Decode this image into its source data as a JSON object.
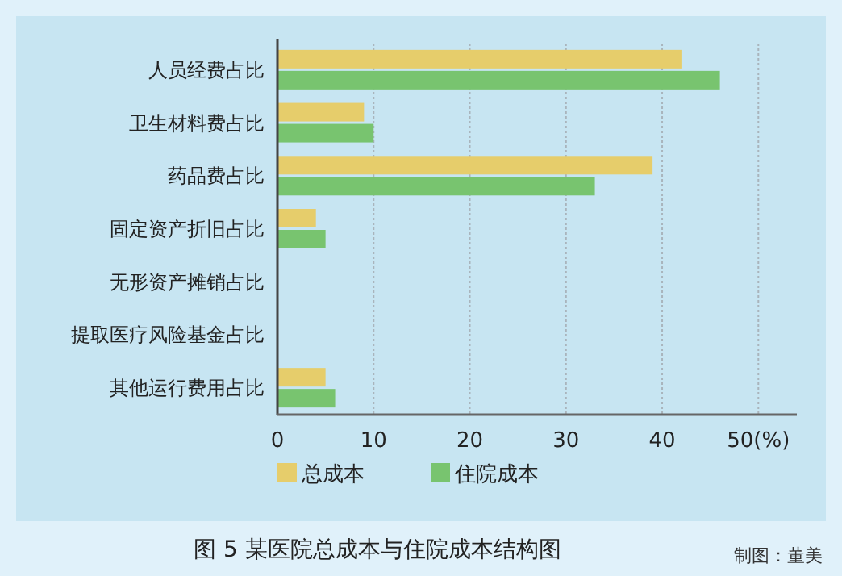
{
  "chart_data": {
    "type": "bar",
    "orientation": "horizontal",
    "title": "图 5  某医院总成本与住院成本结构图",
    "annotations": [
      "制图：董美"
    ],
    "categories": [
      "人员经费占比",
      "卫生材料费占比",
      "药品费占比",
      "固定资产折旧占比",
      "无形资产摊销占比",
      "提取医疗风险基金占比",
      "其他运行费用占比"
    ],
    "series": [
      {
        "name": "总成本",
        "color": "#e6cd6b",
        "values": [
          42,
          9,
          39,
          4,
          0,
          0,
          5
        ]
      },
      {
        "name": "住院成本",
        "color": "#78c46f",
        "values": [
          46,
          10,
          33,
          5,
          0,
          0,
          6
        ]
      }
    ],
    "xlim": [
      0,
      54
    ],
    "xticks": [
      0,
      10,
      20,
      30,
      40,
      {
        "value": 50,
        "label": "50(%)"
      }
    ],
    "grid": "x",
    "legend": "bottom left"
  }
}
